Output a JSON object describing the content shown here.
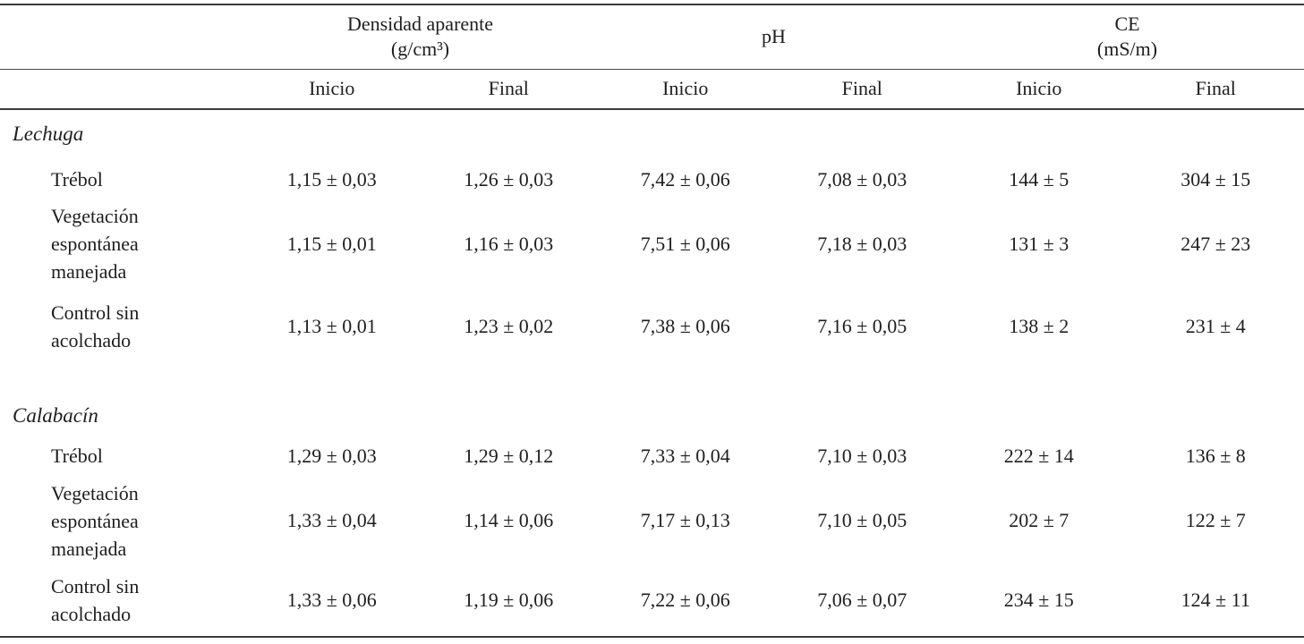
{
  "table": {
    "col_groups": [
      {
        "title": "Densidad aparente",
        "unit": "(g/cm³)"
      },
      {
        "title": "pH"
      },
      {
        "title": "CE",
        "unit": "(mS/m)"
      }
    ],
    "sub_headers": [
      "Inicio",
      "Final",
      "Inicio",
      "Final",
      "Inicio",
      "Final"
    ],
    "sections": [
      {
        "name": "Lechuga",
        "rows": [
          {
            "label": "Trébol",
            "values": [
              "1,15 ± 0,03",
              "1,26 ± 0,03",
              "7,42 ± 0,06",
              "7,08 ± 0,03",
              "144 ± 5",
              "304 ± 15"
            ]
          },
          {
            "label": "Vegetación espontánea manejada",
            "values": [
              "1,15 ± 0,01",
              "1,16 ± 0,03",
              "7,51 ± 0,06",
              "7,18 ± 0,03",
              "131 ± 3",
              "247 ± 23"
            ]
          },
          {
            "label": "Control sin acolchado",
            "values": [
              "1,13 ± 0,01",
              "1,23 ± 0,02",
              "7,38 ± 0,06",
              "7,16 ± 0,05",
              "138 ± 2",
              "231 ± 4"
            ]
          }
        ]
      },
      {
        "name": "Calabacín",
        "rows": [
          {
            "label": "Trébol",
            "values": [
              "1,29 ± 0,03",
              "1,29 ± 0,12",
              "7,33 ± 0,04",
              "7,10 ± 0,03",
              "222 ± 14",
              "136 ± 8"
            ]
          },
          {
            "label": "Vegetación espontánea manejada",
            "values": [
              "1,33 ± 0,04",
              "1,14 ± 0,06",
              "7,17 ± 0,13",
              "7,10 ± 0,05",
              "202 ± 7",
              "122 ± 7"
            ]
          },
          {
            "label": "Control sin acolchado",
            "values": [
              "1,33 ± 0,06",
              "1,19 ± 0,06",
              "7,22 ± 0,06",
              "7,06 ± 0,07",
              "234 ± 15",
              "124 ± 11"
            ]
          }
        ]
      }
    ]
  }
}
